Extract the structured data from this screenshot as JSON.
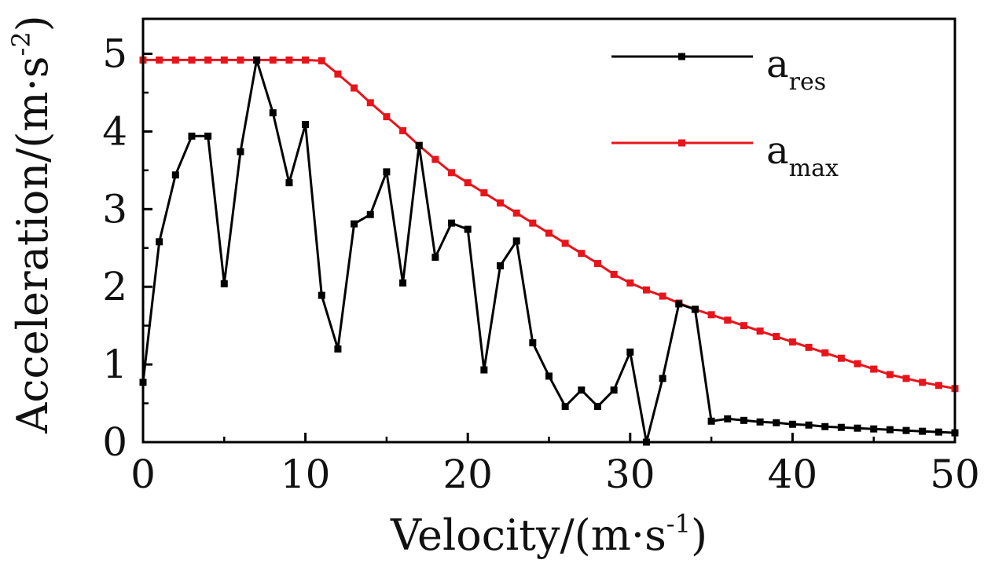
{
  "chart_data": {
    "type": "line",
    "title": "",
    "xlabel": "Velocity/(m·s",
    "xlabel_sup": "-1",
    "xlabel_close": ")",
    "ylabel": "Acceleration/(m·s",
    "ylabel_sup": "-2",
    "ylabel_close": ")",
    "xlim": [
      0,
      50
    ],
    "ylim": [
      0,
      5.45
    ],
    "xticks": [
      "0",
      "10",
      "20",
      "30",
      "40",
      "50"
    ],
    "yticks": [
      "0",
      "1",
      "2",
      "3",
      "4",
      "5"
    ],
    "legend_position": "top-right",
    "series": [
      {
        "name": "a",
        "name_sub": "res",
        "color": "#000000",
        "x": [
          0,
          1,
          2,
          3,
          4,
          5,
          6,
          7,
          8,
          9,
          10,
          11,
          12,
          13,
          14,
          15,
          16,
          17,
          18,
          19,
          20,
          21,
          22,
          23,
          24,
          25,
          26,
          27,
          28,
          29,
          30,
          31,
          32,
          33,
          34,
          35,
          36,
          37,
          38,
          39,
          40,
          41,
          42,
          43,
          44,
          45,
          46,
          47,
          48,
          49,
          50
        ],
        "y": [
          0.77,
          2.58,
          3.44,
          3.94,
          3.94,
          2.04,
          3.74,
          4.92,
          4.24,
          3.34,
          4.09,
          1.89,
          1.2,
          2.81,
          2.93,
          3.48,
          2.05,
          3.82,
          2.38,
          2.82,
          2.74,
          0.93,
          2.27,
          2.59,
          1.28,
          0.85,
          0.46,
          0.67,
          0.46,
          0.67,
          1.16,
          0.0,
          0.82,
          1.78,
          1.71,
          0.27,
          0.3,
          0.28,
          0.26,
          0.25,
          0.23,
          0.22,
          0.2,
          0.19,
          0.18,
          0.17,
          0.16,
          0.15,
          0.14,
          0.13,
          0.12
        ]
      },
      {
        "name": "a",
        "name_sub": "max",
        "color": "#e8141b",
        "x": [
          0,
          1,
          2,
          3,
          4,
          5,
          6,
          7,
          8,
          9,
          10,
          11,
          12,
          13,
          14,
          15,
          16,
          17,
          18,
          19,
          20,
          21,
          22,
          23,
          24,
          25,
          26,
          27,
          28,
          29,
          30,
          31,
          32,
          33,
          34,
          35,
          36,
          37,
          38,
          39,
          40,
          41,
          42,
          43,
          44,
          45,
          46,
          47,
          48,
          49,
          50
        ],
        "y": [
          4.92,
          4.92,
          4.92,
          4.92,
          4.92,
          4.92,
          4.92,
          4.92,
          4.92,
          4.92,
          4.92,
          4.91,
          4.74,
          4.56,
          4.37,
          4.19,
          4.01,
          3.82,
          3.64,
          3.47,
          3.34,
          3.21,
          3.08,
          2.95,
          2.82,
          2.69,
          2.56,
          2.43,
          2.3,
          2.16,
          2.05,
          1.96,
          1.88,
          1.79,
          1.71,
          1.64,
          1.57,
          1.5,
          1.43,
          1.36,
          1.29,
          1.22,
          1.15,
          1.08,
          1.01,
          0.94,
          0.87,
          0.82,
          0.77,
          0.73,
          0.69
        ]
      }
    ]
  }
}
